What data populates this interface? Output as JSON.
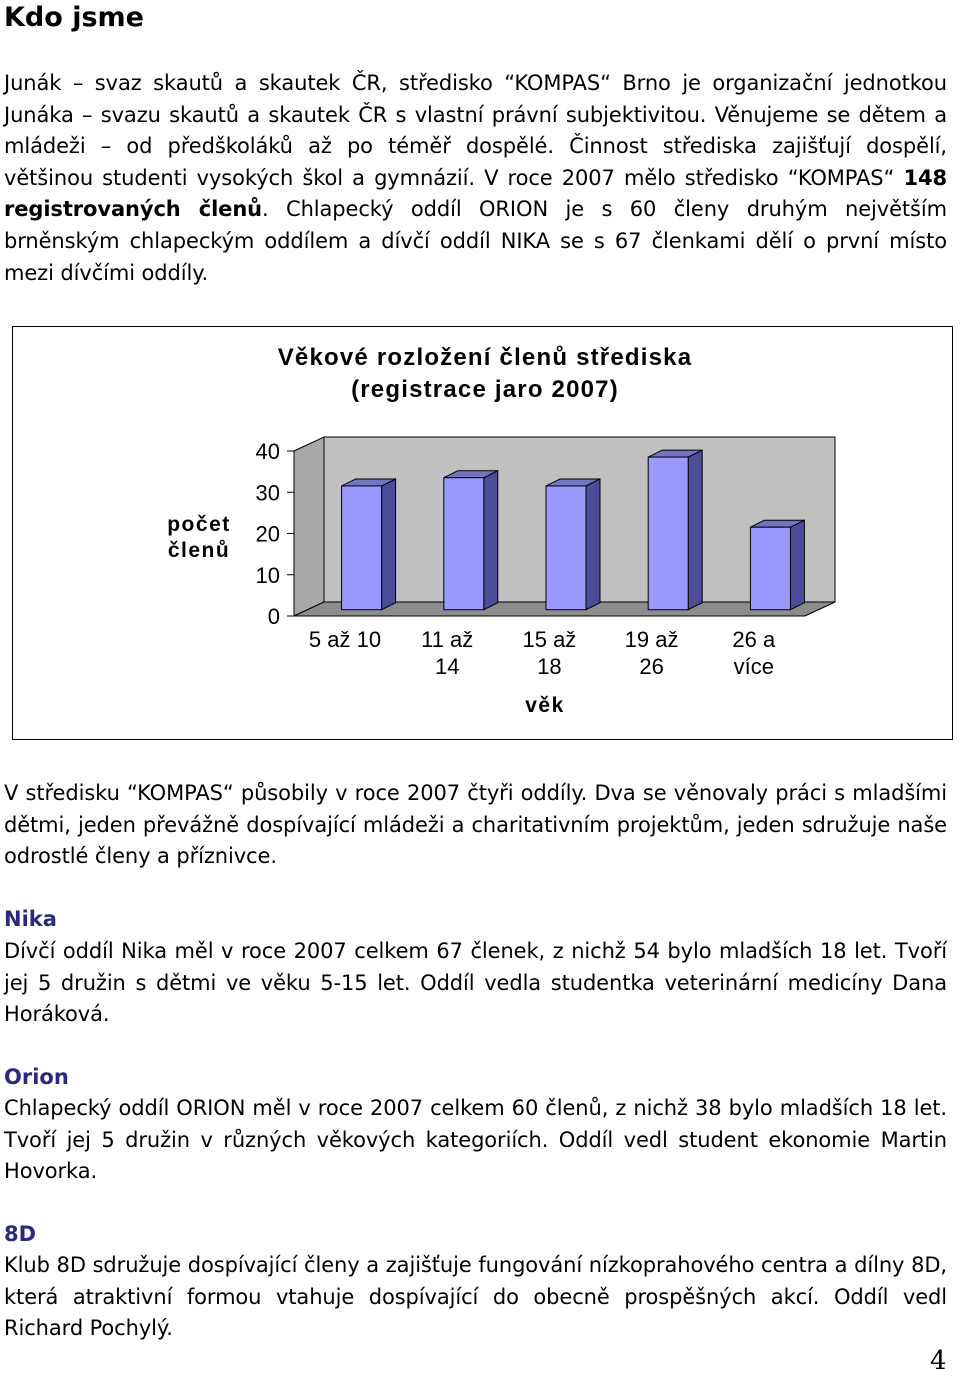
{
  "heading": "Kdo jsme",
  "intro": {
    "part1": "Junák – svaz skautů a skautek ČR, středisko “KOMPAS“ Brno je organizační jednotkou Junáka – svazu skautů a skautek ČR s vlastní právní subjektivitou. Věnujeme se dětem a mládeži – od předškoláků až po téměř dospělé. Činnost střediska zajišťují dospělí, většinou studenti vysokých škol a gymnázií. V roce 2007 mělo středisko “KOMPAS“ ",
    "bold": "148 registrovaných členů",
    "part2": ". Chlapecký oddíl ORION je s 60 členy druhým největším brněnským chlapeckým oddílem a dívčí oddíl NIKA se s 67 členkami dělí o první místo mezi dívčími oddíly."
  },
  "chart_data": {
    "type": "bar",
    "title_line1": "Věkové rozložení členů střediska",
    "title_line2": "(registrace jaro 2007)",
    "ylabel_line1": "počet",
    "ylabel_line2": "členů",
    "xlabel": "věk",
    "ylim": [
      0,
      40
    ],
    "yticks": [
      "0",
      "10",
      "20",
      "30",
      "40"
    ],
    "categories": [
      [
        "5 až 10"
      ],
      [
        "11 až",
        "14"
      ],
      [
        "15 až",
        "18"
      ],
      [
        "19 až",
        "26"
      ],
      [
        "26 a",
        "více"
      ]
    ],
    "values": [
      30,
      32,
      30,
      37,
      20
    ],
    "bar_color": "#9999ff",
    "wall_color": "#c0c0c0",
    "grid": false
  },
  "paragraph2": "V středisku “KOMPAS“ působily v roce 2007 čtyři oddíly. Dva se věnovaly práci s mladšími dětmi, jeden převážně dospívající mládeži a charitativním projektům, jeden sdružuje naše odrostlé členy a příznivce.",
  "sections": [
    {
      "title": "Nika",
      "text": "Dívčí oddíl Nika měl v roce 2007 celkem 67 členek, z nichž 54 bylo mladších 18 let. Tvoří jej 5 družin s dětmi ve věku 5-15 let. Oddíl vedla studentka veterinární medicíny Dana Horáková."
    },
    {
      "title": "Orion",
      "text": "Chlapecký oddíl ORION měl v roce 2007 celkem 60 členů, z nichž 38 bylo mladších 18 let. Tvoří jej 5 družin v různých věkových kategoriích. Oddíl vedl student ekonomie Martin Hovorka."
    },
    {
      "title": "8D",
      "text": "Klub 8D sdružuje dospívající členy a zajišťuje fungování nízkoprahového centra a dílny 8D, která atraktivní formou vtahuje dospívající do obecně prospěšných akcí. Oddíl vedl Richard Pochylý."
    }
  ],
  "page_number": "4"
}
